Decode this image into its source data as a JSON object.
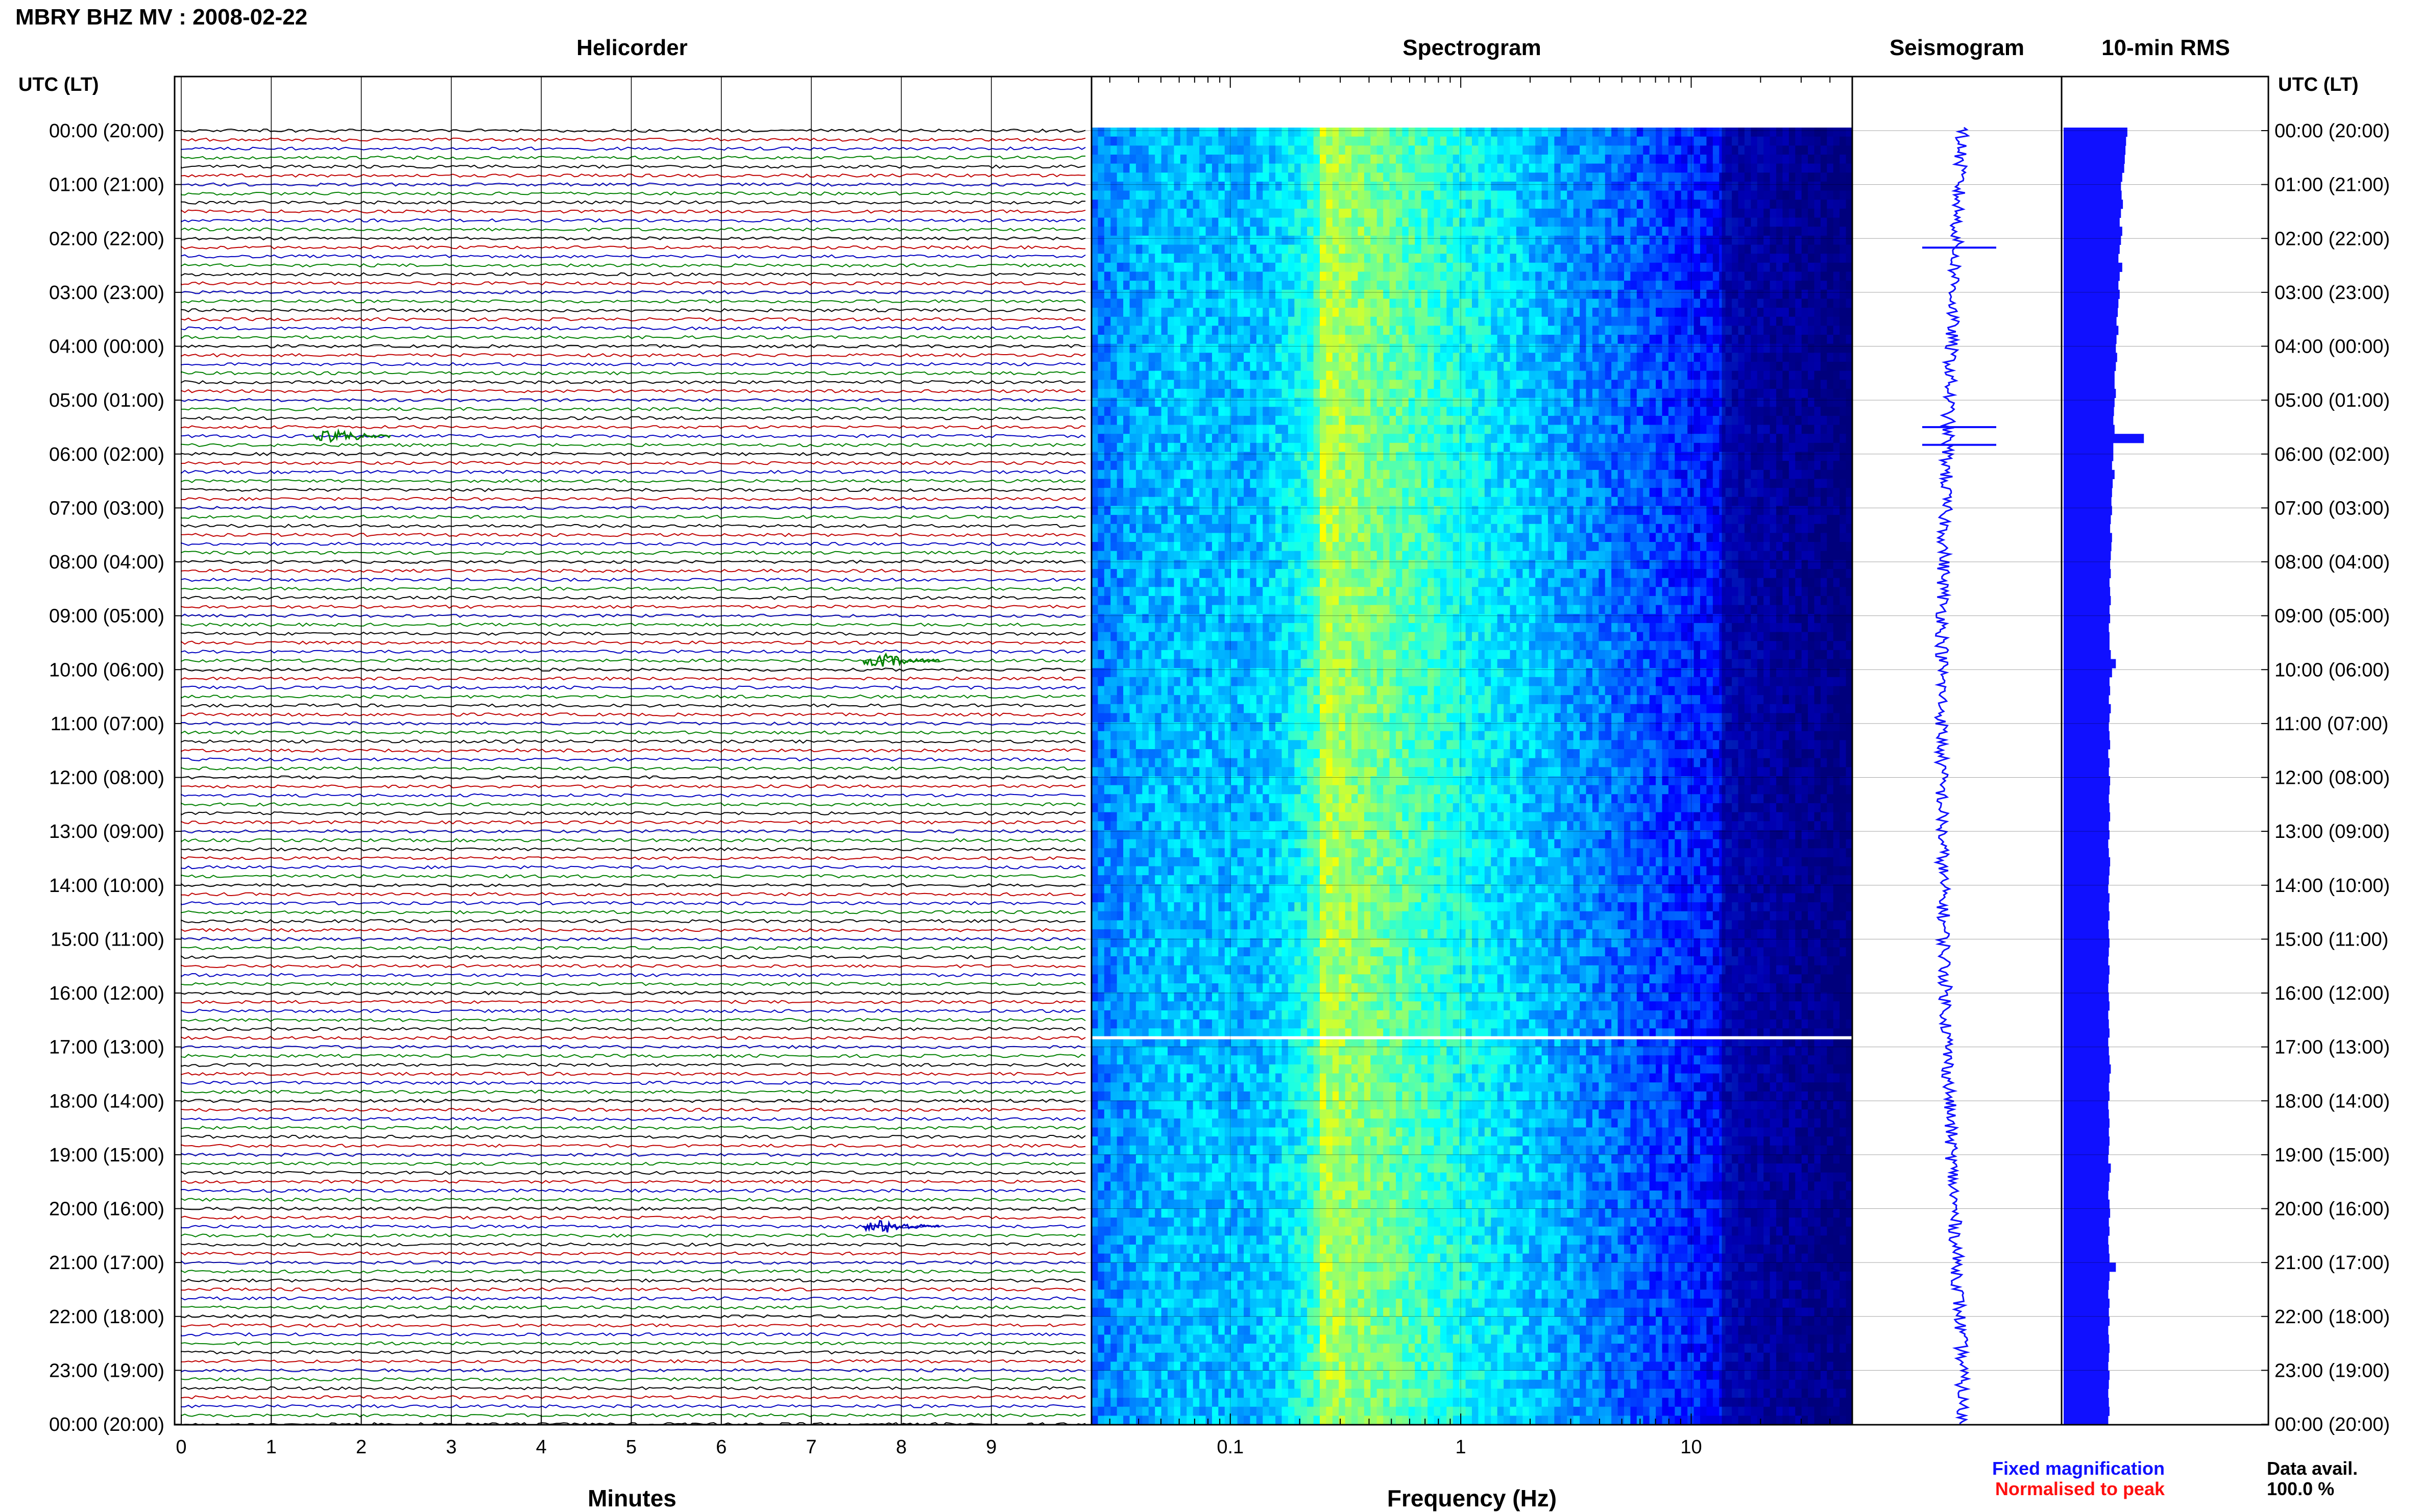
{
  "header": {
    "station_title": "MBRY BHZ MV : 2008-02-22"
  },
  "panels": {
    "helicorder_title": "Helicorder",
    "spectrogram_title": "Spectrogram",
    "seismogram_title": "Seismogram",
    "rms_title": "10-min RMS"
  },
  "axes": {
    "left_time_label": "UTC (LT)",
    "right_time_label": "UTC (LT)",
    "minutes_label": "Minutes",
    "frequency_label": "Frequency (Hz)"
  },
  "legend": {
    "fixed": "Fixed magnification",
    "normalised": "Normalised to peak",
    "fixed_color": "#1010ff",
    "normalised_color": "#ff1010"
  },
  "availability": {
    "label": "Data avail.",
    "value": "100.0 %"
  },
  "chart_data": {
    "type": "heatmap",
    "time_ticks": [
      "00:00 (20:00)",
      "01:00 (21:00)",
      "02:00 (22:00)",
      "03:00 (23:00)",
      "04:00 (00:00)",
      "05:00 (01:00)",
      "06:00 (02:00)",
      "07:00 (03:00)",
      "08:00 (04:00)",
      "09:00 (05:00)",
      "10:00 (06:00)",
      "11:00 (07:00)",
      "12:00 (08:00)",
      "13:00 (09:00)",
      "14:00 (10:00)",
      "15:00 (11:00)",
      "16:00 (12:00)",
      "17:00 (13:00)",
      "18:00 (14:00)",
      "19:00 (15:00)",
      "20:00 (16:00)",
      "21:00 (17:00)",
      "22:00 (18:00)",
      "23:00 (19:00)",
      "00:00 (20:00)"
    ],
    "minute_ticks": [
      "0",
      "1",
      "2",
      "3",
      "4",
      "5",
      "6",
      "7",
      "8",
      "9"
    ],
    "frequency_ticks": [
      "0.1",
      "1",
      "10"
    ],
    "frequency_range_hz": [
      0.025,
      50
    ],
    "helicorder": {
      "rows_per_hour": 6,
      "minutes_per_row": 10,
      "trace_colors": [
        "#000000",
        "#c00000",
        "#0000c0",
        "#008000"
      ],
      "events": [
        {
          "hour": 5.67,
          "minute": 1.7,
          "color": "#008000"
        },
        {
          "hour": 9.83,
          "minute": 7.8,
          "color": "#008000"
        },
        {
          "hour": 20.33,
          "minute": 7.8,
          "color": "#0000c0"
        }
      ],
      "data_gap_hour": 16.83
    },
    "spectrogram": {
      "colormap": [
        "#00007f",
        "#0000ff",
        "#0080ff",
        "#00ffff",
        "#80ff80",
        "#ffff00"
      ],
      "peak_frequency_hz": 0.25,
      "gap_hour": 16.83
    },
    "seismogram": {
      "color": "#1010ff",
      "spike_hours": [
        2.17,
        5.5,
        5.83
      ]
    },
    "rms_10min": {
      "color": "#1010ff",
      "levels": [
        1.0,
        0.98,
        0.97,
        0.96,
        0.95,
        0.92,
        0.9,
        0.91,
        0.93,
        0.9,
        0.88,
        0.92,
        0.9,
        0.88,
        0.86,
        0.92,
        0.88,
        0.86,
        0.88,
        0.86,
        0.85,
        0.83,
        0.86,
        0.83,
        0.82,
        0.84,
        0.82,
        0.8,
        0.8,
        0.82,
        0.8,
        0.79,
        0.78,
        0.8,
        1.26,
        0.78,
        0.78,
        0.76,
        0.8,
        0.77,
        0.76,
        0.75,
        0.76,
        0.74,
        0.73,
        0.76,
        0.75,
        0.74,
        0.73,
        0.74,
        0.72,
        0.73,
        0.74,
        0.72,
        0.73,
        0.71,
        0.72,
        0.72,
        0.74,
        0.82,
        0.76,
        0.72,
        0.73,
        0.71,
        0.74,
        0.72,
        0.71,
        0.72,
        0.73,
        0.7,
        0.72,
        0.71,
        0.73,
        0.72,
        0.71,
        0.72,
        0.73,
        0.71,
        0.72,
        0.7,
        0.71,
        0.73,
        0.72,
        0.71,
        0.7,
        0.72,
        0.71,
        0.72,
        0.7,
        0.71,
        0.72,
        0.71,
        0.7,
        0.72,
        0.71,
        0.7,
        0.71,
        0.72,
        0.7,
        0.71,
        0.72,
        0.7,
        0.71,
        0.72,
        0.74,
        0.72,
        0.71,
        0.72,
        0.7,
        0.71,
        0.72,
        0.71,
        0.72,
        0.71,
        0.7,
        0.74,
        0.72,
        0.71,
        0.7,
        0.72,
        0.73,
        0.71,
        0.72,
        0.7,
        0.71,
        0.72,
        0.82,
        0.72,
        0.71,
        0.7,
        0.72,
        0.71,
        0.72,
        0.7,
        0.71,
        0.72,
        0.71,
        0.7,
        0.72,
        0.71,
        0.7,
        0.71,
        0.72,
        0.7
      ]
    }
  }
}
